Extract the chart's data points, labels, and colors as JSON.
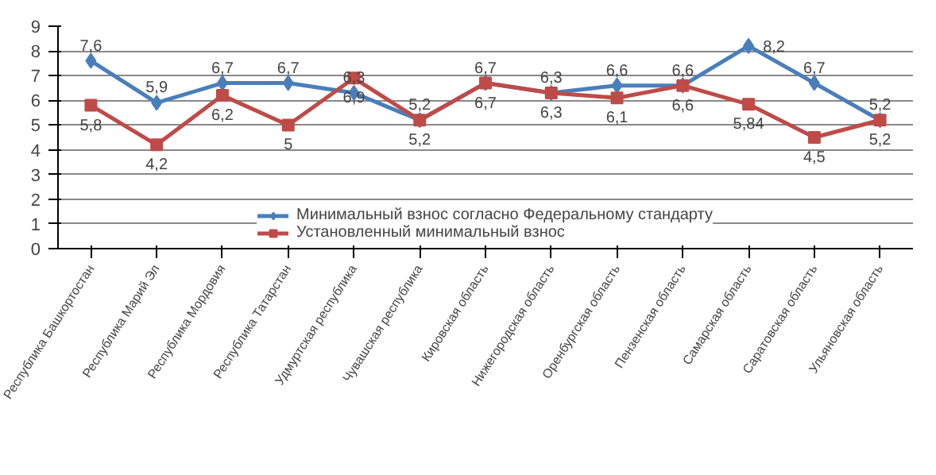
{
  "chart_data": {
    "type": "line",
    "categories": [
      "Республика Башкортостан",
      "Республика Марий Эл",
      "Республика Мордовия",
      "Республика Татарстан",
      "Удмуртская республика",
      "Чувашская республика",
      "Кировская область",
      "Нижегородская область",
      "Оренбургская область",
      "Пензенская область",
      "Самарская область",
      "Саратовская область",
      "Ульяновская область"
    ],
    "series": [
      {
        "name": "Минимальный взнос согласно Федеральному стандарту",
        "color": "#4a7ebb",
        "marker": "diamond",
        "values": [
          7.6,
          5.9,
          6.7,
          6.7,
          6.3,
          5.2,
          6.7,
          6.3,
          6.6,
          6.6,
          8.2,
          6.7,
          5.2
        ],
        "value_labels": [
          "7,6",
          "5,9",
          "6,7",
          "6,7",
          "6,3",
          "5,2",
          "6,7",
          "6,3",
          "6,6",
          "6,6",
          "8,2",
          "6,7",
          "5,2"
        ]
      },
      {
        "name": "Установленный минимальный взнос",
        "color": "#be4b48",
        "marker": "square",
        "values": [
          5.8,
          4.2,
          6.2,
          5,
          6.9,
          5.2,
          6.7,
          6.3,
          6.1,
          6.6,
          5.84,
          4.5,
          5.2
        ],
        "value_labels": [
          "5,8",
          "4,2",
          "6,2",
          "5",
          "6,9",
          "5,2",
          "6,7",
          "6,3",
          "6,1",
          "6,6",
          "5,84",
          "4,5",
          "5,2"
        ]
      }
    ],
    "ylim": [
      0,
      9
    ],
    "yticks": [
      0,
      1,
      2,
      3,
      4,
      5,
      6,
      7,
      8,
      9
    ],
    "grid": "y",
    "legend": "bottom"
  }
}
